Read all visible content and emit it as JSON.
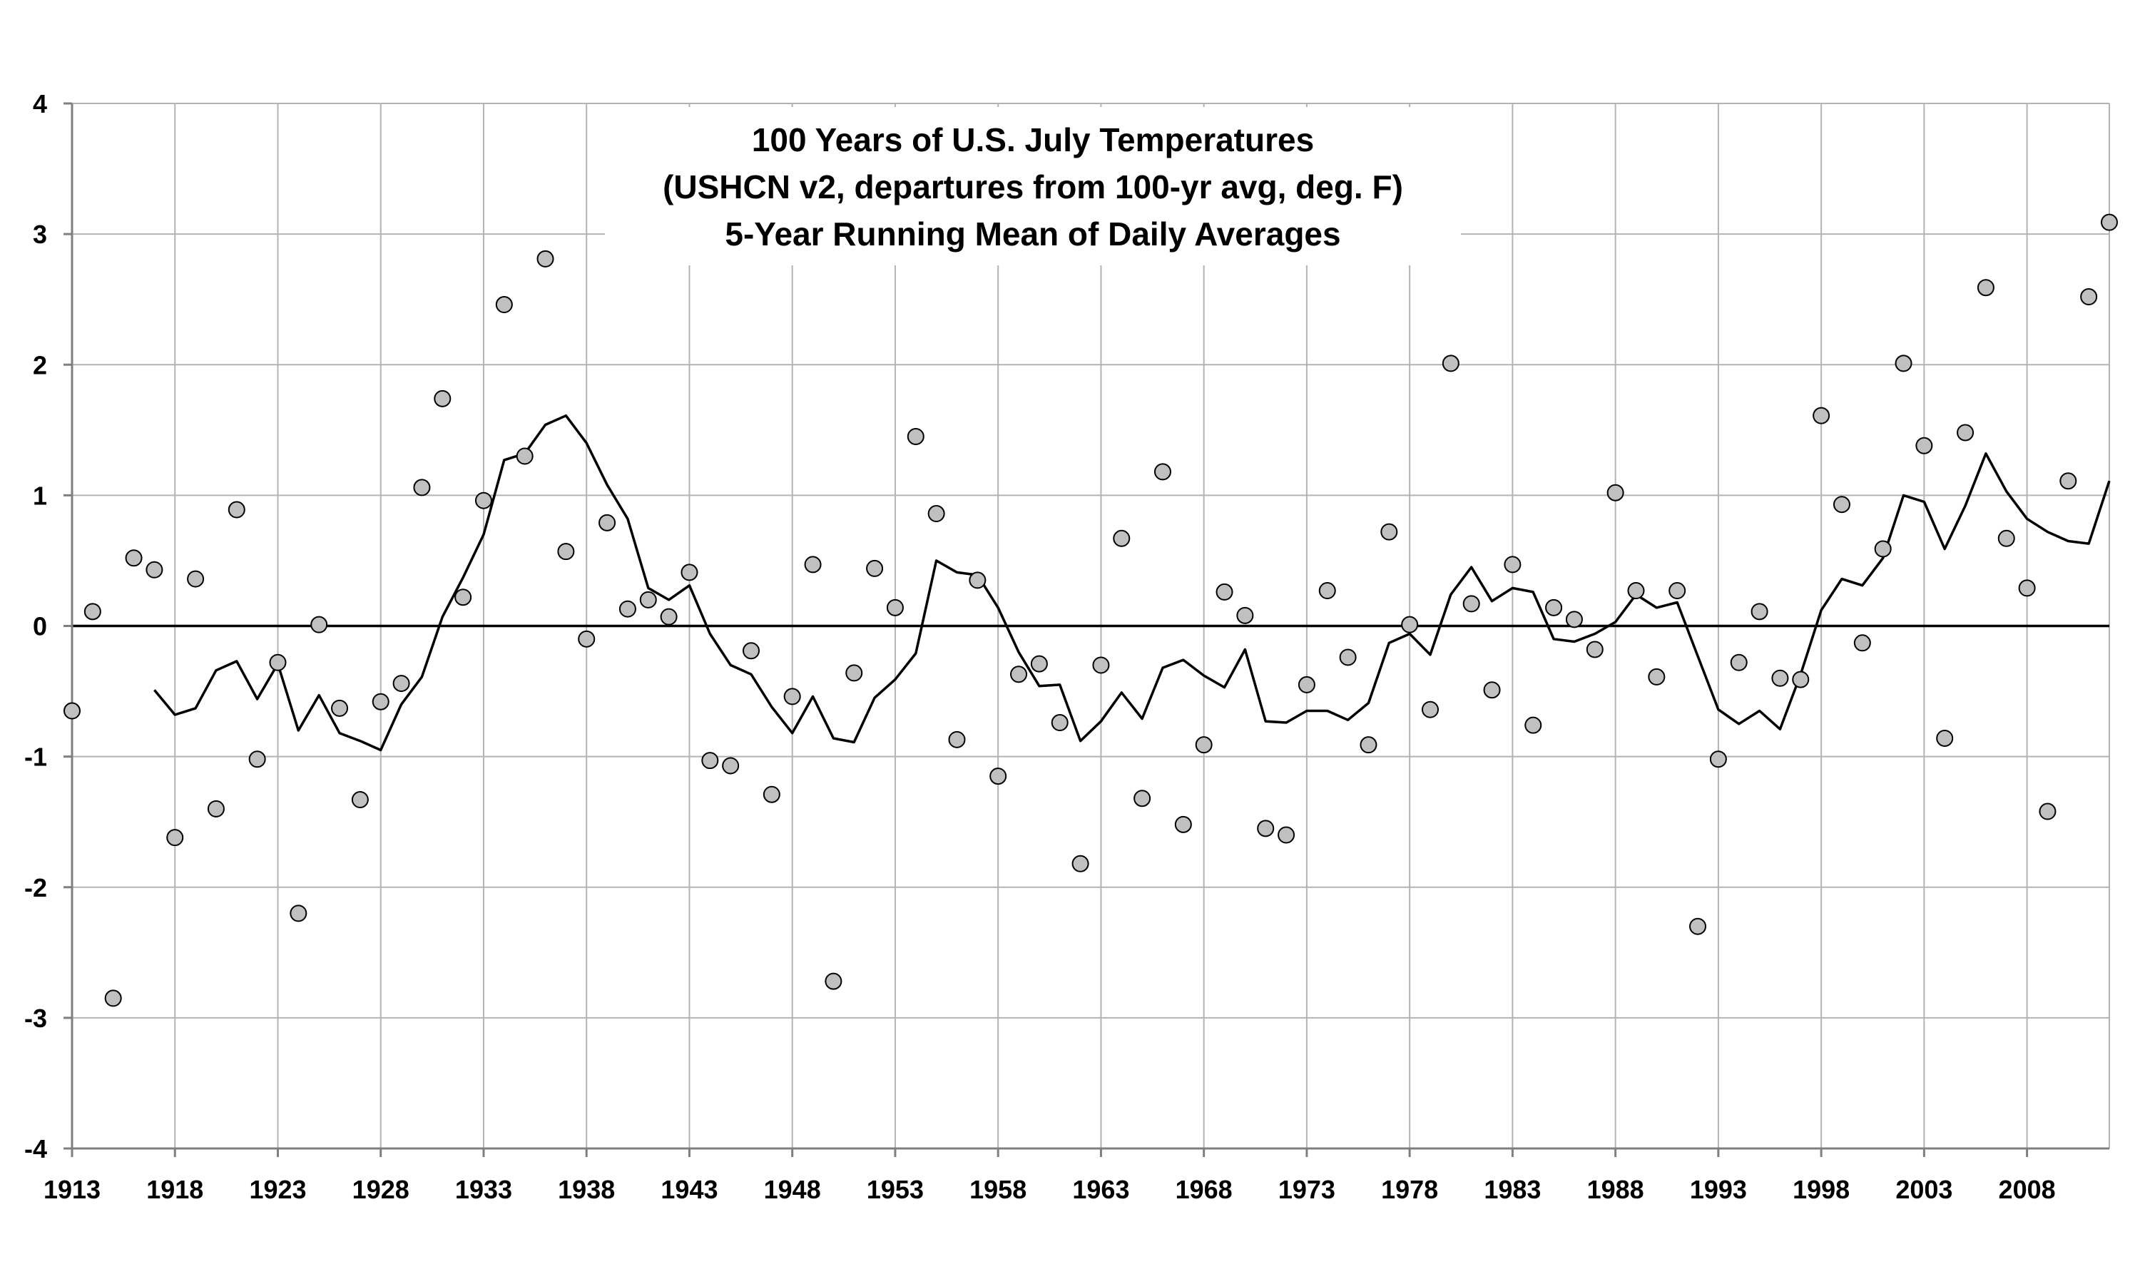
{
  "chart_data": {
    "type": "scatter",
    "title_lines": [
      "100 Years of U.S. July Temperatures",
      "(USHCN v2, departures from 100-yr avg, deg. F)",
      "5-Year Running Mean of Daily Averages"
    ],
    "xlabel": "",
    "ylabel": "",
    "xlim": [
      1913,
      2012
    ],
    "ylim": [
      -4,
      4
    ],
    "x_ticks": [
      1913,
      1918,
      1923,
      1928,
      1933,
      1938,
      1943,
      1948,
      1953,
      1958,
      1963,
      1968,
      1973,
      1978,
      1983,
      1988,
      1993,
      1998,
      2003,
      2008
    ],
    "x_tick_labels": [
      "1913",
      "1918",
      "1923",
      "1928",
      "1933",
      "1938",
      "1943",
      "1948",
      "1953",
      "1958",
      "1963",
      "1968",
      "1973",
      "1978",
      "1983",
      "1988",
      "1993",
      "1998",
      "2003",
      "2008"
    ],
    "y_ticks": [
      -4,
      -3,
      -2,
      -1,
      0,
      1,
      2,
      3,
      4
    ],
    "y_tick_labels": [
      "-4",
      "-3",
      "-2",
      "-1",
      "0",
      "1",
      "2",
      "3",
      "4"
    ],
    "grid": true,
    "legend": "none",
    "series": [
      {
        "kind": "points",
        "x": [
          1913,
          1914,
          1915,
          1916,
          1917,
          1918,
          1919,
          1920,
          1921,
          1922,
          1923,
          1924,
          1925,
          1926,
          1927,
          1928,
          1929,
          1930,
          1931,
          1932,
          1933,
          1934,
          1935,
          1936,
          1937,
          1938,
          1939,
          1940,
          1941,
          1942,
          1943,
          1944,
          1945,
          1946,
          1947,
          1948,
          1949,
          1950,
          1951,
          1952,
          1953,
          1954,
          1955,
          1956,
          1957,
          1958,
          1959,
          1960,
          1961,
          1962,
          1963,
          1964,
          1965,
          1966,
          1967,
          1968,
          1969,
          1970,
          1971,
          1972,
          1973,
          1974,
          1975,
          1976,
          1977,
          1978,
          1979,
          1980,
          1981,
          1982,
          1983,
          1984,
          1985,
          1986,
          1987,
          1988,
          1989,
          1990,
          1991,
          1992,
          1993,
          1994,
          1995,
          1996,
          1997,
          1998,
          1999,
          2000,
          2001,
          2002,
          2003,
          2004,
          2005,
          2006,
          2007,
          2008,
          2009,
          2010,
          2011,
          2012
        ],
        "y": [
          -0.65,
          0.11,
          -2.85,
          0.52,
          0.43,
          -1.62,
          0.36,
          -1.4,
          0.89,
          -1.02,
          -0.28,
          -2.2,
          0.01,
          -0.63,
          -1.33,
          -0.58,
          -0.44,
          1.06,
          1.74,
          0.22,
          0.96,
          2.46,
          1.3,
          2.81,
          0.57,
          -0.1,
          0.79,
          0.13,
          0.2,
          0.07,
          0.41,
          -1.03,
          -1.07,
          -0.19,
          -1.29,
          -0.54,
          0.47,
          -2.72,
          -0.36,
          0.44,
          0.14,
          1.45,
          0.86,
          -0.87,
          0.35,
          -1.15,
          -0.37,
          -0.29,
          -0.74,
          -1.82,
          -0.3,
          0.67,
          -1.32,
          1.18,
          -1.52,
          -0.91,
          0.26,
          0.08,
          -1.55,
          -1.6,
          -0.45,
          0.27,
          -0.24,
          -0.91,
          0.72,
          0.01,
          -0.64,
          2.01,
          0.17,
          -0.49,
          0.47,
          -0.76,
          0.14,
          0.05,
          -0.18,
          1.02,
          0.27,
          -0.39,
          0.27,
          -2.3,
          -1.02,
          -0.28,
          0.11,
          -0.4,
          -0.41,
          1.61,
          0.93,
          -0.13,
          0.59,
          2.01,
          1.38,
          -0.86,
          1.48,
          2.59,
          0.67,
          0.29,
          -1.42,
          1.11,
          2.52,
          3.09
        ]
      },
      {
        "kind": "line",
        "x": [
          1917,
          1918,
          1919,
          1920,
          1921,
          1922,
          1923,
          1924,
          1925,
          1926,
          1927,
          1928,
          1929,
          1930,
          1931,
          1932,
          1933,
          1934,
          1935,
          1936,
          1937,
          1938,
          1939,
          1940,
          1941,
          1942,
          1943,
          1944,
          1945,
          1946,
          1947,
          1948,
          1949,
          1950,
          1951,
          1952,
          1953,
          1954,
          1955,
          1956,
          1957,
          1958,
          1959,
          1960,
          1961,
          1962,
          1963,
          1964,
          1965,
          1966,
          1967,
          1968,
          1969,
          1970,
          1971,
          1972,
          1973,
          1974,
          1975,
          1976,
          1977,
          1978,
          1979,
          1980,
          1981,
          1982,
          1983,
          1984,
          1985,
          1986,
          1987,
          1988,
          1989,
          1990,
          1991,
          1992,
          1993,
          1994,
          1995,
          1996,
          1997,
          1998,
          1999,
          2000,
          2001,
          2002,
          2003,
          2004,
          2005,
          2006,
          2007,
          2008,
          2009,
          2010,
          2011,
          2012
        ],
        "y": [
          -0.49,
          -0.68,
          -0.63,
          -0.34,
          -0.27,
          -0.56,
          -0.29,
          -0.8,
          -0.53,
          -0.82,
          -0.88,
          -0.95,
          -0.6,
          -0.39,
          0.07,
          0.37,
          0.7,
          1.27,
          1.32,
          1.54,
          1.61,
          1.4,
          1.08,
          0.82,
          0.29,
          0.2,
          0.31,
          -0.06,
          -0.3,
          -0.37,
          -0.62,
          -0.82,
          -0.54,
          -0.86,
          -0.89,
          -0.55,
          -0.41,
          -0.21,
          0.5,
          0.41,
          0.39,
          0.14,
          -0.2,
          -0.46,
          -0.45,
          -0.88,
          -0.73,
          -0.51,
          -0.71,
          -0.32,
          -0.26,
          -0.38,
          -0.47,
          -0.18,
          -0.73,
          -0.74,
          -0.65,
          -0.65,
          -0.72,
          -0.59,
          -0.13,
          -0.06,
          -0.22,
          0.24,
          0.45,
          0.19,
          0.29,
          0.26,
          -0.1,
          -0.12,
          -0.06,
          0.03,
          0.24,
          0.14,
          0.18,
          -0.23,
          -0.64,
          -0.75,
          -0.65,
          -0.79,
          -0.37,
          0.12,
          0.36,
          0.31,
          0.52,
          1.0,
          0.95,
          0.59,
          0.92,
          1.32,
          1.03,
          0.82,
          0.72,
          0.65,
          0.63,
          1.11
        ]
      }
    ]
  }
}
